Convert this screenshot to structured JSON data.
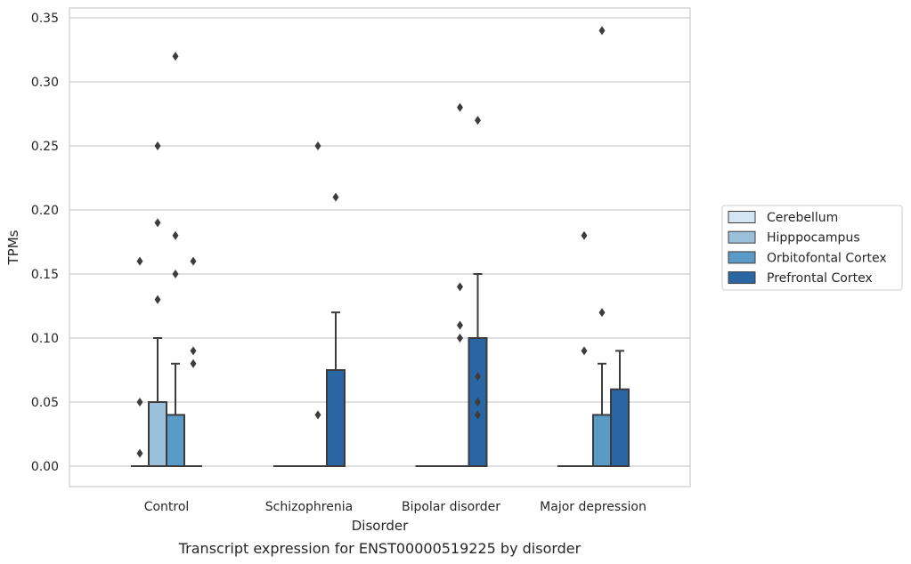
{
  "chart_data": {
    "type": "box",
    "xlabel": "Disorder",
    "ylabel": "TPMs",
    "caption": "Transcript expression for ENST00000519225 by disorder",
    "ylim": [
      -0.017,
      0.357
    ],
    "yticks": [
      "0.00",
      "0.05",
      "0.10",
      "0.15",
      "0.20",
      "0.25",
      "0.30",
      "0.35"
    ],
    "ytick_values": [
      0,
      0.05,
      0.1,
      0.15,
      0.2,
      0.25,
      0.3,
      0.35
    ],
    "grid": "horizontal",
    "legend_position": "right",
    "categories": [
      "Control",
      "Schizophrenia",
      "Bipolar disorder",
      "Major depression"
    ],
    "series": [
      {
        "name": "Cerebellum",
        "color": "#d3e4f3",
        "boxes": [
          {
            "q1": 0,
            "median": 0,
            "q3": 0,
            "whisker_low": 0,
            "whisker_high": 0,
            "outliers": [
              0.16,
              0.05,
              0.01
            ]
          },
          {
            "q1": 0,
            "median": 0,
            "q3": 0,
            "whisker_low": 0,
            "whisker_high": 0,
            "outliers": []
          },
          {
            "q1": 0,
            "median": 0,
            "q3": 0,
            "whisker_low": 0,
            "whisker_high": 0,
            "outliers": []
          },
          {
            "q1": 0,
            "median": 0,
            "q3": 0,
            "whisker_low": 0,
            "whisker_high": 0,
            "outliers": []
          }
        ]
      },
      {
        "name": "Hipppocampus",
        "color": "#9ac0da",
        "boxes": [
          {
            "q1": 0,
            "median": 0,
            "q3": 0.05,
            "whisker_low": 0,
            "whisker_high": 0.1,
            "outliers": [
              0.25,
              0.19,
              0.13
            ]
          },
          {
            "q1": 0,
            "median": 0,
            "q3": 0,
            "whisker_low": 0,
            "whisker_high": 0,
            "outliers": []
          },
          {
            "q1": 0,
            "median": 0,
            "q3": 0,
            "whisker_low": 0,
            "whisker_high": 0,
            "outliers": []
          },
          {
            "q1": 0,
            "median": 0,
            "q3": 0,
            "whisker_low": 0,
            "whisker_high": 0,
            "outliers": [
              0.18,
              0.09
            ]
          }
        ]
      },
      {
        "name": "Orbitofontal Cortex",
        "color": "#5a9ac6",
        "boxes": [
          {
            "q1": 0,
            "median": 0,
            "q3": 0.04,
            "whisker_low": 0,
            "whisker_high": 0.08,
            "outliers": [
              0.32,
              0.18,
              0.15
            ]
          },
          {
            "q1": 0,
            "median": 0,
            "q3": 0,
            "whisker_low": 0,
            "whisker_high": 0,
            "outliers": [
              0.25,
              0.04
            ]
          },
          {
            "q1": 0,
            "median": 0,
            "q3": 0,
            "whisker_low": 0,
            "whisker_high": 0,
            "outliers": [
              0.28,
              0.14,
              0.11,
              0.1
            ]
          },
          {
            "q1": 0,
            "median": 0,
            "q3": 0.04,
            "whisker_low": 0,
            "whisker_high": 0.08,
            "outliers": [
              0.34,
              0.12
            ]
          }
        ]
      },
      {
        "name": "Prefrontal Cortex",
        "color": "#2966a3",
        "boxes": [
          {
            "q1": 0,
            "median": 0,
            "q3": 0,
            "whisker_low": 0,
            "whisker_high": 0,
            "outliers": [
              0.16,
              0.09,
              0.08
            ]
          },
          {
            "q1": 0,
            "median": 0,
            "q3": 0.075,
            "whisker_low": 0,
            "whisker_high": 0.12,
            "outliers": [
              0.21
            ]
          },
          {
            "q1": 0,
            "median": 0,
            "q3": 0.1,
            "whisker_low": 0,
            "whisker_high": 0.15,
            "outliers": [
              0.27,
              0.07,
              0.05,
              0.04
            ]
          },
          {
            "q1": 0,
            "median": 0,
            "q3": 0.06,
            "whisker_low": 0,
            "whisker_high": 0.09,
            "outliers": []
          }
        ]
      }
    ]
  }
}
